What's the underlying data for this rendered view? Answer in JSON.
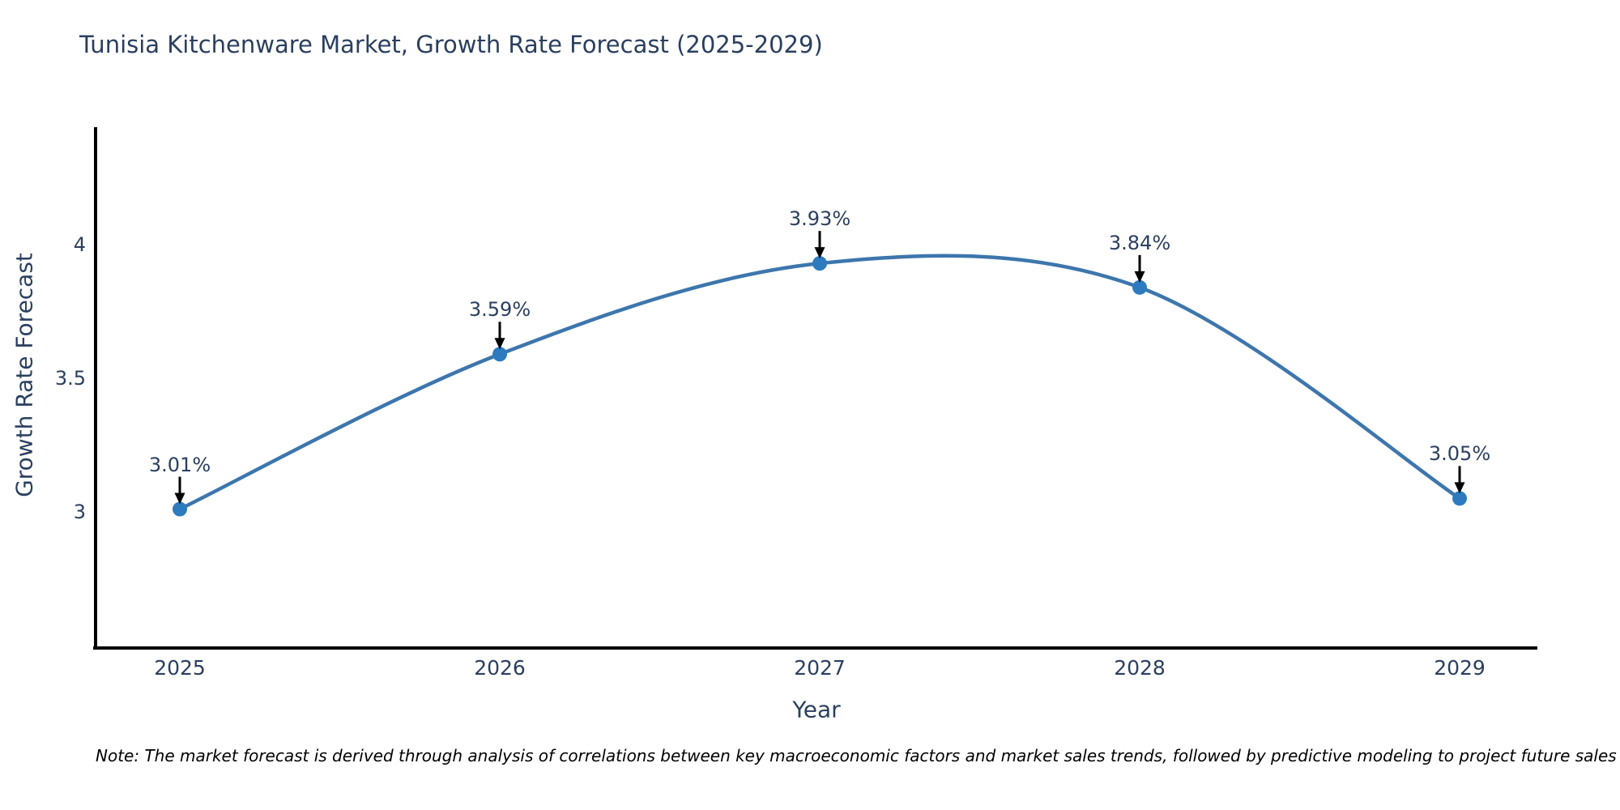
{
  "title": "Tunisia Kitchenware Market, Growth Rate Forecast (2025-2029)",
  "note": "Note: The market forecast is derived through analysis of correlations between key macroeconomic factors and market sales trends, followed by predictive modeling to project future sales",
  "chart_data": {
    "type": "line",
    "title": "Tunisia Kitchenware Market, Growth Rate Forecast (2025-2029)",
    "categories": [
      "2025",
      "2026",
      "2027",
      "2028",
      "2029"
    ],
    "series": [
      {
        "name": "Growth Rate Forecast",
        "values": [
          3.01,
          3.59,
          3.93,
          3.84,
          3.05
        ]
      }
    ],
    "point_labels": [
      "3.01%",
      "3.59%",
      "3.93%",
      "3.84%",
      "3.05%"
    ],
    "xlabel": "Year",
    "ylabel": "Growth Rate Forecast",
    "yticks": [
      3,
      3.5,
      4
    ],
    "ytick_labels": [
      "3",
      "3.5",
      "4"
    ],
    "ylim": [
      2.49,
      4.44
    ],
    "line_shape": "spline",
    "grid": false,
    "legend": "none",
    "annotations": "value labels with down arrows pointing to each data point",
    "colors": {
      "line": "#3d76ad",
      "marker": "#2d7bbe",
      "axis": "#000000",
      "text": "#2a3f5f",
      "arrow": "#000000",
      "background": "#ffffff"
    }
  }
}
